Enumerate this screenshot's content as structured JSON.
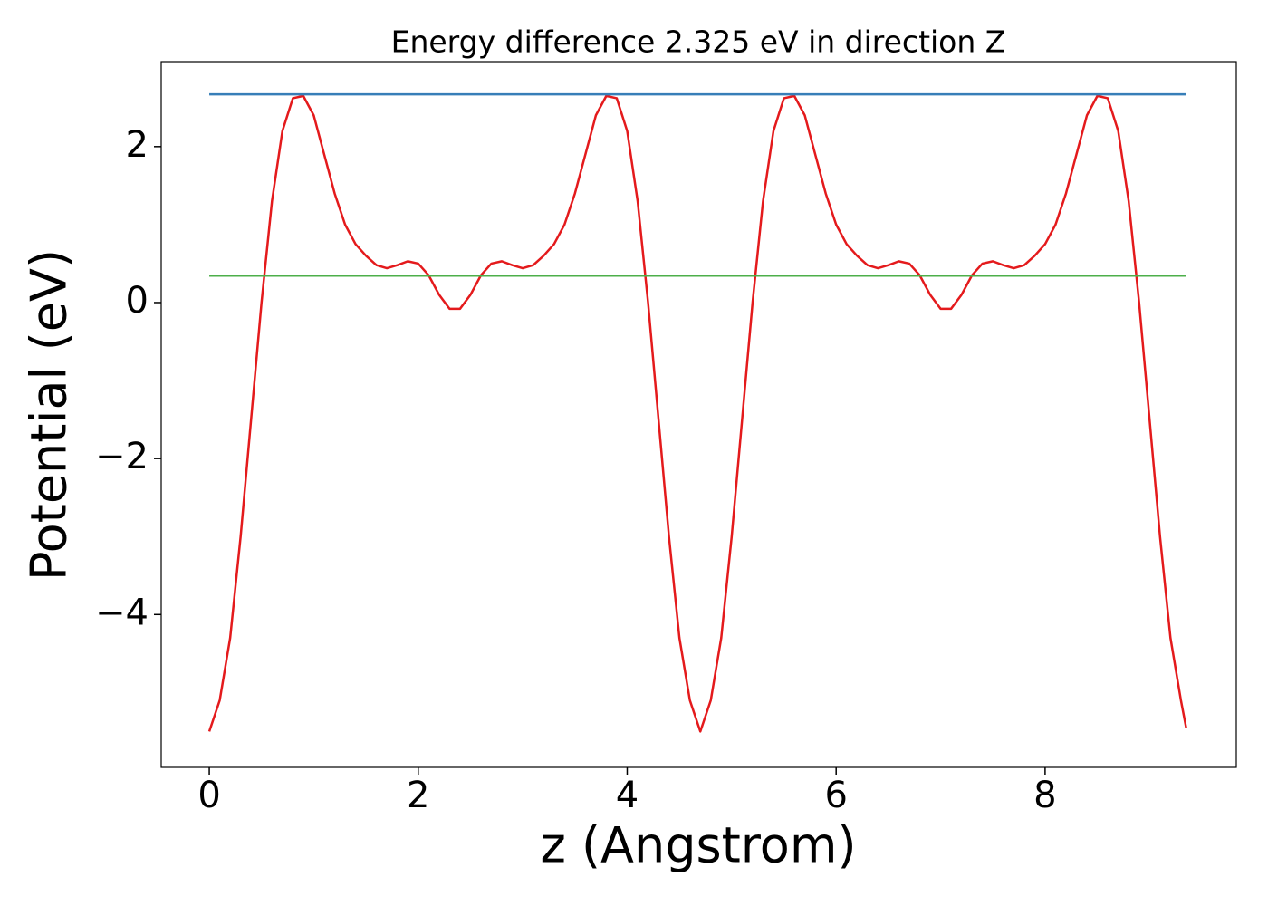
{
  "chart_data": {
    "type": "line",
    "title": "Energy difference 2.325 eV in direction Z",
    "xlabel": "z (Angstrom)",
    "ylabel": "Potential (eV)",
    "xlim": [
      -0.46,
      9.83
    ],
    "ylim": [
      -5.96,
      3.09
    ],
    "xticks": [
      0,
      2,
      4,
      6,
      8
    ],
    "yticks": [
      {
        "value": -4,
        "label": "−4"
      },
      {
        "value": -2,
        "label": "−2"
      },
      0,
      2
    ],
    "series": [
      {
        "color": "#e41a1c",
        "x": [
          0,
          0.1,
          0.2,
          0.3,
          0.4,
          0.5,
          0.6,
          0.7,
          0.8,
          0.9,
          1.0,
          1.1,
          1.2,
          1.3,
          1.4,
          1.5,
          1.6,
          1.7,
          1.8,
          1.9,
          2.0,
          2.1,
          2.2,
          2.3,
          2.4,
          2.5,
          2.6,
          2.7,
          2.8,
          2.9,
          3.0,
          3.1,
          3.2,
          3.3,
          3.4,
          3.5,
          3.6,
          3.7,
          3.8,
          3.9,
          4.0,
          4.1,
          4.2,
          4.3,
          4.4,
          4.5,
          4.6,
          4.7,
          4.8,
          4.9,
          5.0,
          5.1,
          5.2,
          5.3,
          5.4,
          5.5,
          5.6,
          5.7,
          5.8,
          5.9,
          6.0,
          6.1,
          6.2,
          6.3,
          6.4,
          6.5,
          6.6,
          6.7,
          6.8,
          6.9,
          7.0,
          7.1,
          7.2,
          7.3,
          7.4,
          7.5,
          7.6,
          7.7,
          7.8,
          7.9,
          8.0,
          8.1,
          8.2,
          8.3,
          8.4,
          8.5,
          8.6,
          8.7,
          8.8,
          8.9,
          9.0,
          9.1,
          9.2,
          9.3,
          9.35
        ],
        "values": [
          -5.5,
          -5.1,
          -4.3,
          -3.0,
          -1.5,
          0.0,
          1.3,
          2.2,
          2.62,
          2.65,
          2.4,
          1.9,
          1.4,
          1.0,
          0.75,
          0.6,
          0.48,
          0.44,
          0.48,
          0.53,
          0.5,
          0.35,
          0.1,
          -0.08,
          -0.08,
          0.1,
          0.35,
          0.5,
          0.53,
          0.48,
          0.44,
          0.48,
          0.6,
          0.75,
          1.0,
          1.4,
          1.9,
          2.4,
          2.65,
          2.62,
          2.2,
          1.3,
          0.0,
          -1.5,
          -3.0,
          -4.3,
          -5.1,
          -5.5,
          -5.1,
          -4.3,
          -3.0,
          -1.5,
          0.0,
          1.3,
          2.2,
          2.62,
          2.65,
          2.4,
          1.9,
          1.4,
          1.0,
          0.75,
          0.6,
          0.48,
          0.44,
          0.48,
          0.53,
          0.5,
          0.35,
          0.1,
          -0.08,
          -0.08,
          0.1,
          0.35,
          0.5,
          0.53,
          0.48,
          0.44,
          0.48,
          0.6,
          0.75,
          1.0,
          1.4,
          1.9,
          2.4,
          2.65,
          2.62,
          2.2,
          1.3,
          0.0,
          -1.5,
          -3.0,
          -4.3,
          -5.1,
          -5.45
        ]
      },
      {
        "color": "#377eb8",
        "x": [
          0,
          9.35
        ],
        "values": [
          2.67,
          2.67
        ]
      },
      {
        "color": "#4daf4a",
        "x": [
          0,
          9.35
        ],
        "values": [
          0.345,
          0.345
        ]
      }
    ]
  }
}
